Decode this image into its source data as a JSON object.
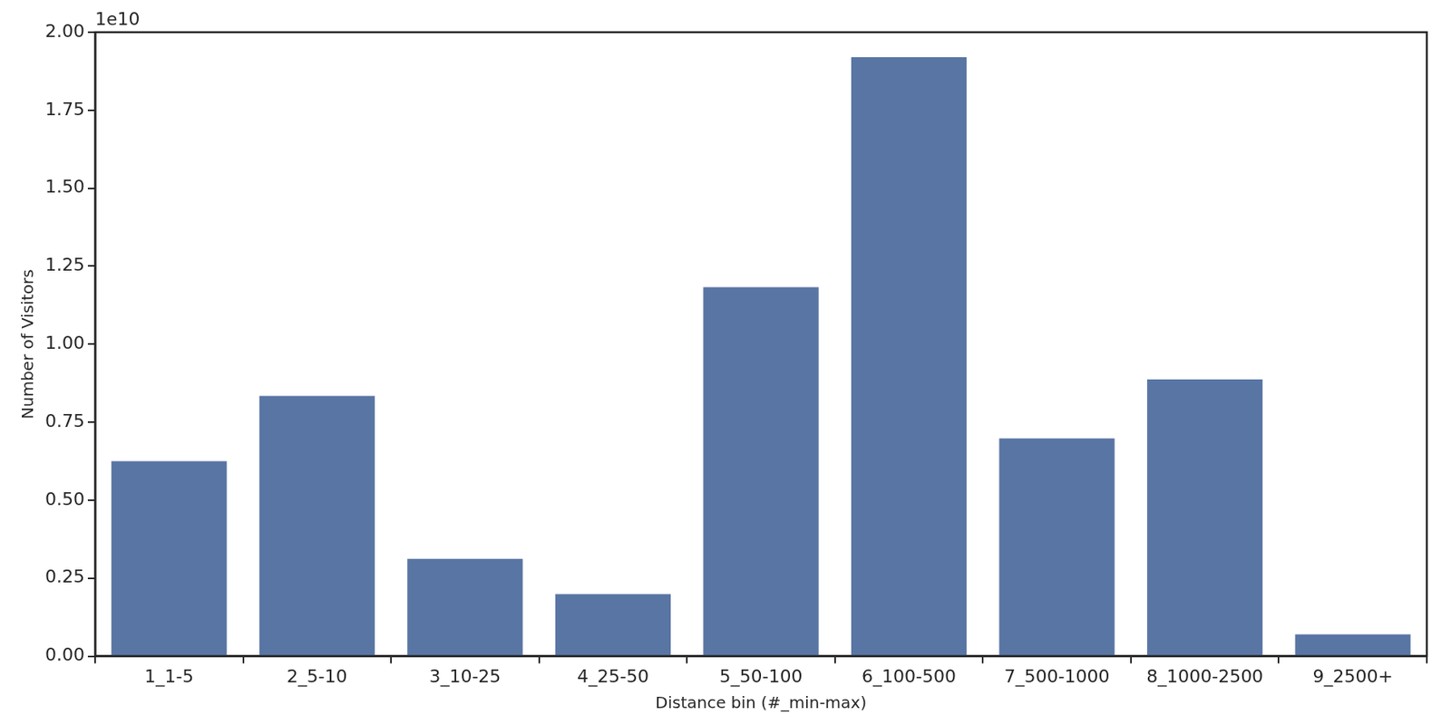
{
  "chart_data": {
    "type": "bar",
    "x_label": "Distance bin (#_min-max)",
    "y_label": "Number of Visitors",
    "annotations": [
      "1e10"
    ],
    "categories": [
      "1_1-5",
      "2_5-10",
      "3_10-25",
      "4_25-50",
      "5_50-100",
      "6_100-500",
      "7_500-1000",
      "8_1000-2500",
      "9_2500+"
    ],
    "values": [
      0.625,
      0.834,
      0.312,
      0.199,
      1.183,
      1.92,
      0.698,
      0.887,
      0.07
    ],
    "color": "#5975a4",
    "ylim": [
      0,
      2.0
    ],
    "yticks": [
      {
        "value": 0,
        "label": "0.00"
      },
      {
        "value": 0.25,
        "label": "0.25"
      },
      {
        "value": 0.5,
        "label": "0.50"
      },
      {
        "value": 0.75,
        "label": "0.75"
      },
      {
        "value": 1.0,
        "label": "1.00"
      },
      {
        "value": 1.25,
        "label": "1.25"
      },
      {
        "value": 1.5,
        "label": "1.50"
      },
      {
        "value": 1.75,
        "label": "1.75"
      },
      {
        "value": 2.0,
        "label": "2.00"
      }
    ],
    "grid": false
  }
}
